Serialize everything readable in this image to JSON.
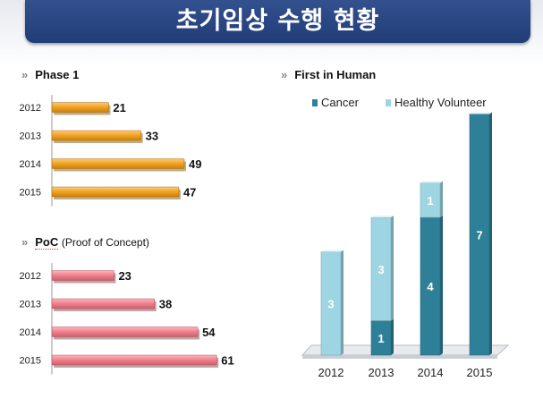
{
  "title": "초기임상 수행 현황",
  "phase1": {
    "title": "Phase 1",
    "chart_data": {
      "type": "bar",
      "orientation": "horizontal",
      "categories": [
        "2012",
        "2013",
        "2014",
        "2015"
      ],
      "values": [
        21,
        33,
        49,
        47
      ],
      "color": "#f4a11a"
    }
  },
  "poc": {
    "title": "PoC",
    "subtitle": "(Proof of Concept)",
    "chart_data": {
      "type": "bar",
      "orientation": "horizontal",
      "categories": [
        "2012",
        "2013",
        "2014",
        "2015"
      ],
      "values": [
        23,
        38,
        54,
        61
      ],
      "color": "#f47d8a"
    }
  },
  "fih": {
    "title": "First in Human",
    "chart_data": {
      "type": "bar",
      "stacked": true,
      "categories": [
        "2012",
        "2013",
        "2014",
        "2015"
      ],
      "series": [
        {
          "name": "Cancer",
          "values": [
            0,
            1,
            4,
            7
          ],
          "color": "#2e8098"
        },
        {
          "name": "Healthy Volunteer",
          "values": [
            3,
            3,
            1,
            0
          ],
          "color": "#9dd5e3"
        }
      ],
      "legend": "top"
    }
  }
}
